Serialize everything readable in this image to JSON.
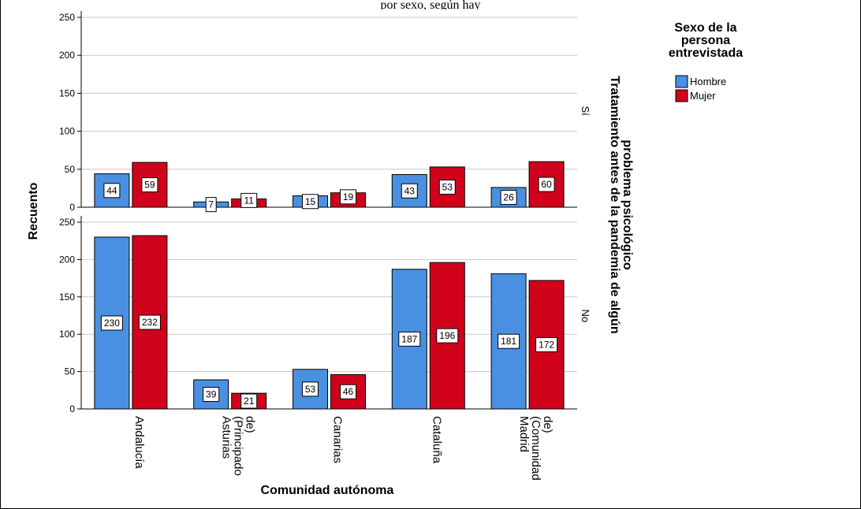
{
  "header": {
    "title_fragment": "por sexo, según hay"
  },
  "chart_data": {
    "type": "bar",
    "categories": [
      "Andalucía",
      "Asturias (Principado de)",
      "Canarias",
      "Cataluña",
      "Madrid (Comunidad de)"
    ],
    "category_label_lines": [
      [
        "Andalucía"
      ],
      [
        "Asturias",
        "(Principado",
        "de)"
      ],
      [
        "Canarias"
      ],
      [
        "Cataluña"
      ],
      [
        "Madrid",
        "(Comunidad",
        "de)"
      ]
    ],
    "xlabel": "Comunidad autónoma",
    "ylabel": "Recuento",
    "panel_axis_title_lines": [
      "Tratamiento antes de la pandemia de algún",
      "problema psicológico"
    ],
    "yticks": [
      0,
      50,
      100,
      150,
      200,
      250
    ],
    "legend": {
      "title_lines": [
        "Sexo de la",
        "persona",
        "entrevistada"
      ],
      "placement": "top-right"
    },
    "panels": [
      {
        "label": "Sí",
        "series": [
          {
            "name": "Hombre",
            "color": "#4a90e2",
            "values": [
              44,
              7,
              15,
              43,
              26
            ]
          },
          {
            "name": "Mujer",
            "color": "#d0021b",
            "values": [
              59,
              11,
              19,
              53,
              60
            ]
          }
        ]
      },
      {
        "label": "No",
        "series": [
          {
            "name": "Hombre",
            "color": "#4a90e2",
            "values": [
              230,
              39,
              53,
              187,
              181
            ]
          },
          {
            "name": "Mujer",
            "color": "#d0021b",
            "values": [
              232,
              21,
              46,
              196,
              172
            ]
          }
        ]
      }
    ],
    "grid": true,
    "ylim": [
      0,
      250
    ]
  }
}
